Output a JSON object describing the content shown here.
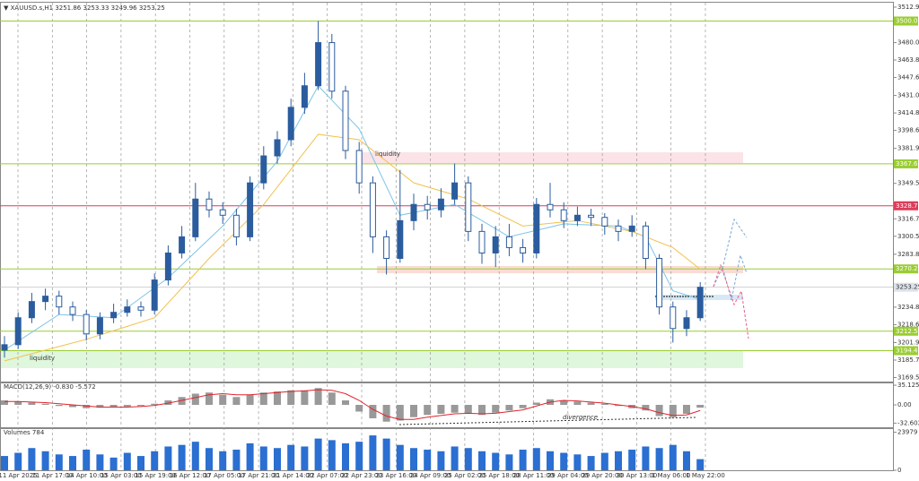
{
  "chart_data": [
    {
      "type": "candlestick",
      "title": "▼ XAUUSD.s,H1 3251.86 3253.33 3249.96 3253.25",
      "color": "#2b5c9e",
      "open": [
        3195,
        3200,
        3225,
        3240,
        3245,
        3235,
        3228,
        3210,
        3225,
        3230,
        3235,
        3232,
        3260,
        3285,
        3300,
        3335,
        3325,
        3320,
        3300,
        3350,
        3375,
        3390,
        3420,
        3440,
        3480,
        3435,
        3380,
        3350,
        3300,
        3280,
        3315,
        3330,
        3325,
        3335,
        3350,
        3305,
        3285,
        3300,
        3290,
        3285,
        3330,
        3325,
        3315,
        3320,
        3318,
        3310,
        3305,
        3310,
        3280,
        3235,
        3215,
        3225
      ],
      "high": [
        3208,
        3230,
        3248,
        3252,
        3250,
        3240,
        3232,
        3230,
        3238,
        3242,
        3240,
        3266,
        3292,
        3310,
        3350,
        3342,
        3332,
        3326,
        3356,
        3384,
        3398,
        3428,
        3452,
        3500,
        3488,
        3440,
        3388,
        3356,
        3306,
        3362,
        3340,
        3338,
        3345,
        3368,
        3356,
        3312,
        3310,
        3312,
        3298,
        3336,
        3350,
        3332,
        3328,
        3326,
        3322,
        3316,
        3320,
        3314,
        3284,
        3240,
        3232,
        3258
      ],
      "low": [
        3188,
        3196,
        3220,
        3232,
        3228,
        3222,
        3204,
        3205,
        3220,
        3226,
        3226,
        3228,
        3255,
        3280,
        3296,
        3318,
        3312,
        3292,
        3296,
        3344,
        3368,
        3384,
        3414,
        3436,
        3428,
        3372,
        3340,
        3285,
        3265,
        3276,
        3306,
        3316,
        3318,
        3330,
        3296,
        3275,
        3272,
        3282,
        3276,
        3280,
        3318,
        3308,
        3310,
        3310,
        3302,
        3296,
        3300,
        3270,
        3228,
        3202,
        3208,
        3222
      ],
      "close": [
        3200,
        3225,
        3240,
        3245,
        3235,
        3228,
        3210,
        3225,
        3230,
        3235,
        3232,
        3260,
        3285,
        3300,
        3335,
        3325,
        3320,
        3300,
        3350,
        3375,
        3390,
        3420,
        3440,
        3480,
        3435,
        3380,
        3350,
        3300,
        3280,
        3315,
        3330,
        3325,
        3335,
        3350,
        3305,
        3285,
        3300,
        3290,
        3285,
        3330,
        3325,
        3315,
        3320,
        3318,
        3310,
        3305,
        3310,
        3280,
        3235,
        3215,
        3225,
        3253.25
      ],
      "lines": [
        {
          "color": "#7cc4e8",
          "x": [
            0,
            4,
            8,
            12,
            16,
            20,
            23,
            26,
            29,
            33,
            37,
            41,
            45,
            47,
            49,
            51
          ],
          "values": [
            3195,
            3228,
            3225,
            3262,
            3310,
            3370,
            3440,
            3400,
            3320,
            3330,
            3300,
            3312,
            3310,
            3300,
            3250,
            3242
          ]
        },
        {
          "color": "#f2c14e",
          "x": [
            0,
            6,
            11,
            15,
            19,
            23,
            26,
            30,
            34,
            38,
            42,
            46,
            49,
            51
          ],
          "values": [
            3185,
            3205,
            3225,
            3280,
            3330,
            3395,
            3390,
            3350,
            3335,
            3310,
            3315,
            3305,
            3290,
            3270
          ]
        }
      ],
      "ylim": [
        3165,
        3517
      ],
      "yticks": [
        {
          "value": 3512.9,
          "label": "3512.90"
        },
        {
          "value": 3480,
          "label": "3480.00"
        },
        {
          "value": 3463.85,
          "label": "3463.85"
        },
        {
          "value": 3447.65,
          "label": "3447.65"
        },
        {
          "value": 3431,
          "label": "3431.00"
        },
        {
          "value": 3414.8,
          "label": "3414.80"
        },
        {
          "value": 3398.6,
          "label": "3398.60"
        },
        {
          "value": 3381.95,
          "label": "3381.95"
        },
        {
          "value": 3349.55,
          "label": "3349.55"
        },
        {
          "value": 3316.7,
          "label": "3316.70"
        },
        {
          "value": 3300.5,
          "label": "3300.50"
        },
        {
          "value": 3283.85,
          "label": "3283.85"
        },
        {
          "value": 3234.8,
          "label": "3234.80"
        },
        {
          "value": 3218.6,
          "label": "3218.60"
        },
        {
          "value": 3201.95,
          "label": "3201.95"
        },
        {
          "value": 3185.75,
          "label": "3185.75"
        },
        {
          "value": 3169.55,
          "label": "3169.55"
        }
      ],
      "levels": [
        {
          "value": 3500,
          "label": "3500.00",
          "color": "#9acd32"
        },
        {
          "value": 3367.62,
          "label": "3367.62",
          "color": "#9acd32"
        },
        {
          "value": 3328.75,
          "label": "3328.75",
          "color": "#dc3c5a"
        },
        {
          "value": 3270.25,
          "label": "3270.25",
          "color": "#9acd32"
        },
        {
          "value": 3212.51,
          "label": "3212.51",
          "color": "#9acd32"
        },
        {
          "value": 3194.47,
          "label": "3194.47",
          "color": "#9acd32"
        }
      ],
      "current_price": {
        "value": 3253.25,
        "label": "3253.25"
      },
      "annotations": [
        "liquidity",
        "liquidity"
      ],
      "time_labels": [
        "11 Apr 2025",
        "11 Apr 17:00",
        "14 Apr 10:00",
        "15 Apr 03:00",
        "15 Apr 19:00",
        "16 Apr 12:00",
        "17 Apr 05:00",
        "17 Apr 21:00",
        "21 Apr 14:00",
        "22 Apr 07:00",
        "22 Apr 23:00",
        "23 Apr 16:00",
        "24 Apr 09:00",
        "25 Apr 02:00",
        "25 Apr 18:00",
        "28 Apr 11:00",
        "29 Apr 04:00",
        "29 Apr 20:00",
        "30 Apr 13:00",
        "1 May 06:00",
        "1 May 22:00"
      ]
    },
    {
      "type": "macd",
      "title": "MACD(12,26,9) -0.830 -5.572",
      "color": "#999999",
      "signal_color": "#e0242c",
      "values": [
        8,
        6,
        4,
        2,
        -2,
        -4,
        -6,
        -5,
        -4,
        -3,
        -2,
        2,
        8,
        14,
        20,
        22,
        18,
        14,
        18,
        22,
        24,
        26,
        26,
        30,
        22,
        8,
        -12,
        -24,
        -30,
        -28,
        -22,
        -18,
        -16,
        -14,
        -16,
        -18,
        -14,
        -10,
        -6,
        4,
        10,
        8,
        6,
        4,
        2,
        -2,
        -6,
        -10,
        -20,
        -22,
        -16,
        -5
      ],
      "signal": [
        6,
        6,
        5,
        4,
        2,
        0,
        -2,
        -4,
        -4,
        -4,
        -3,
        -1,
        3,
        8,
        13,
        18,
        20,
        18,
        18,
        20,
        22,
        24,
        25,
        27,
        26,
        20,
        8,
        -8,
        -20,
        -26,
        -26,
        -22,
        -19,
        -16,
        -15,
        -16,
        -15,
        -12,
        -9,
        -2,
        5,
        8,
        7,
        5,
        3,
        0,
        -3,
        -7,
        -14,
        -19,
        -18,
        -10
      ],
      "ylim": [
        -40,
        40
      ],
      "yticks": [
        35.125,
        {
          "value": 0,
          "label": "0.00"
        },
        -32.602
      ],
      "annotation": "divergence"
    },
    {
      "type": "volume",
      "title": "Volumes 784",
      "color": "#2a6fd1",
      "values": [
        9000,
        11000,
        14000,
        12000,
        10000,
        9000,
        13000,
        10000,
        8000,
        11000,
        9000,
        12000,
        15000,
        16000,
        18000,
        14000,
        12000,
        13000,
        17000,
        15000,
        14000,
        16000,
        15000,
        20000,
        19000,
        17000,
        18000,
        22000,
        20000,
        16000,
        14000,
        13000,
        12000,
        15000,
        14000,
        12000,
        11000,
        10000,
        13000,
        14000,
        12000,
        11000,
        10000,
        9000,
        11000,
        12000,
        13000,
        15000,
        14000,
        16000,
        12000,
        7000
      ],
      "ylim": [
        0,
        26000
      ],
      "yticks": [
        23979,
        0
      ]
    }
  ]
}
